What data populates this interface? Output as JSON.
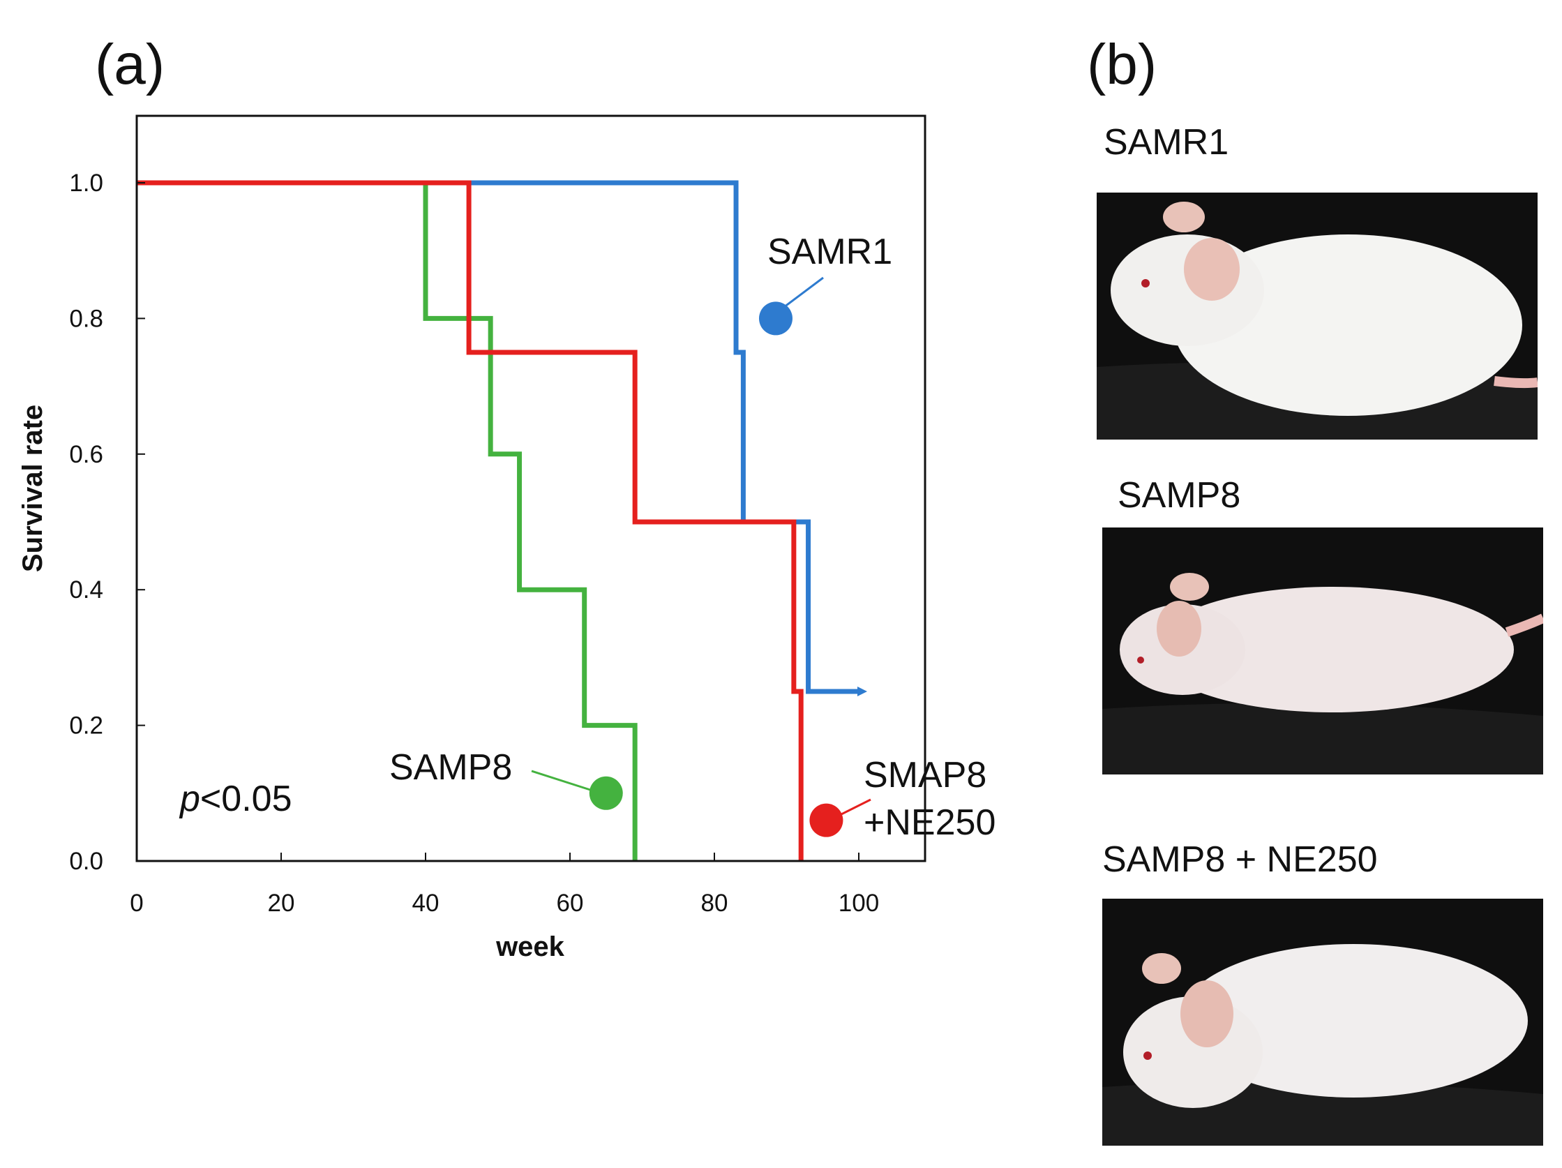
{
  "panels": {
    "a_label": "(a)",
    "b_label": "(b)"
  },
  "chart_data": {
    "type": "line",
    "subtype": "kaplan-meier step",
    "xlabel": "week",
    "ylabel": "Survival rate",
    "xlim": [
      0,
      110
    ],
    "ylim": [
      0,
      1.1
    ],
    "xticks": [
      0,
      20,
      40,
      60,
      80,
      100
    ],
    "yticks": [
      0.0,
      0.2,
      0.4,
      0.6,
      0.8,
      1.0
    ],
    "xtick_labels": [
      "0",
      "20",
      "40",
      "60",
      "80",
      "100"
    ],
    "ytick_labels": [
      "0.0",
      "0.2",
      "0.4",
      "0.6",
      "0.8",
      "1.0"
    ],
    "annotation": {
      "p_symbol": "p",
      "p_value": "<0.05"
    },
    "series": [
      {
        "name": "SAMR1",
        "label_lines": [
          "SAMR1"
        ],
        "color": "#2e7bcf",
        "points": [
          [
            0,
            1.0
          ],
          [
            83,
            1.0
          ],
          [
            83,
            0.75
          ],
          [
            84,
            0.75
          ],
          [
            84,
            0.5
          ],
          [
            93,
            0.5
          ],
          [
            93,
            0.25
          ],
          [
            100,
            0.25
          ]
        ],
        "marker": [
          88.5,
          0.8
        ]
      },
      {
        "name": "SAMP8",
        "label_lines": [
          "SAMP8"
        ],
        "color": "#44b23f",
        "points": [
          [
            0,
            1.0
          ],
          [
            40,
            1.0
          ],
          [
            40,
            0.8
          ],
          [
            49,
            0.8
          ],
          [
            49,
            0.6
          ],
          [
            53,
            0.6
          ],
          [
            53,
            0.4
          ],
          [
            62,
            0.4
          ],
          [
            62,
            0.2
          ],
          [
            69,
            0.2
          ],
          [
            69,
            0.0
          ]
        ],
        "marker": [
          65,
          0.1
        ]
      },
      {
        "name": "SMAP8 +NE250",
        "label_lines": [
          "SMAP8",
          "+NE250"
        ],
        "color": "#e5201e",
        "points": [
          [
            0,
            1.0
          ],
          [
            46,
            1.0
          ],
          [
            46,
            0.75
          ],
          [
            69,
            0.75
          ],
          [
            69,
            0.5
          ],
          [
            91,
            0.5
          ],
          [
            91,
            0.25
          ],
          [
            92,
            0.25
          ],
          [
            92,
            0.0
          ]
        ],
        "marker": [
          95.5,
          0.06
        ]
      }
    ]
  },
  "photos": [
    {
      "caption": "SAMR1",
      "icon": "mouse-photo-icon"
    },
    {
      "caption": "SAMP8",
      "icon": "mouse-photo-icon"
    },
    {
      "caption": "SAMP8 + NE250",
      "icon": "mouse-photo-icon"
    }
  ]
}
